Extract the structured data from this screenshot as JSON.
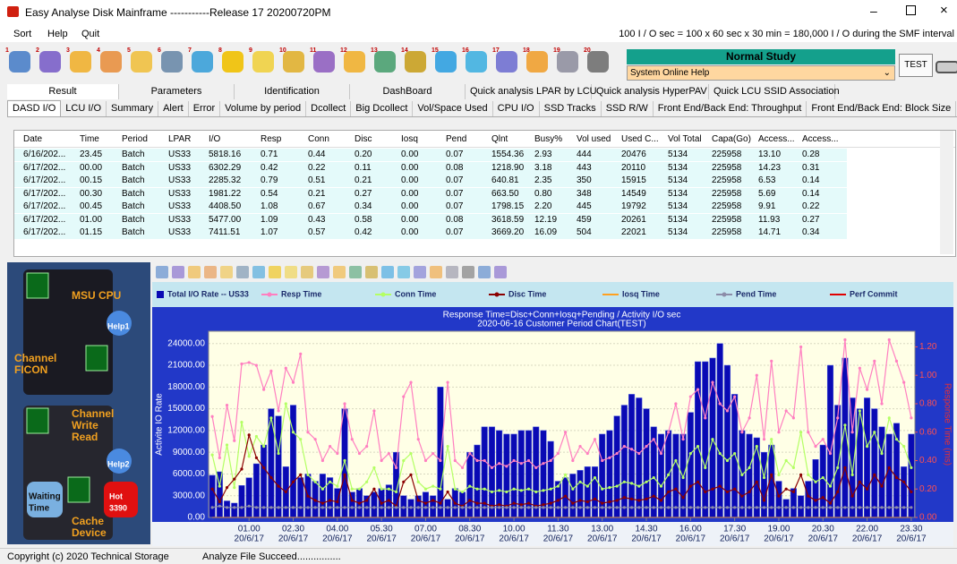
{
  "window": {
    "title": "Easy Analyse Disk Mainframe -----------Release 17 20200720PM"
  },
  "menu": [
    "Sort",
    "Help",
    "Quit"
  ],
  "info": "100 I / O sec = 100 x 60 sec x 30 min = 180,000 I / O during the SMF interval",
  "study": "Normal Study",
  "help_select": "System Online Help",
  "test_button": "TEST",
  "toolbar_numbers": [
    "1",
    "2",
    "3",
    "4",
    "5",
    "6",
    "7",
    "8",
    "9",
    "10",
    "11",
    "12",
    "13",
    "14",
    "15",
    "16",
    "17",
    "18",
    "19",
    "20"
  ],
  "tabs_top": [
    "Result",
    "Parameters",
    "Identification",
    "DashBoard",
    "Quick analysis LPAR by LCU",
    "Quick analysis HyperPAV",
    "Quick LCU SSID Association"
  ],
  "tabs_sub": [
    "DASD I/O",
    "LCU I/O",
    "Summary",
    "Alert",
    "Error",
    "Volume by period",
    "Dcollect",
    "Big Dcollect",
    "Vol/Space Used",
    "CPU I/O",
    "SSD Tracks",
    "SSD R/W",
    "Front End/Back End: Throughput",
    "Front End/Back End: Block Size"
  ],
  "table": {
    "columns": [
      "Date",
      "Time",
      "Period",
      "LPAR",
      "I/O",
      "Resp",
      "Conn",
      "Disc",
      "Iosq",
      "Pend",
      "Qlnt",
      "Busy%",
      "Vol used",
      "Used C...",
      "Vol Total",
      "Capa(Go)",
      "Access...",
      "Access..."
    ],
    "rows": [
      [
        "6/16/202...",
        "23.45",
        "Batch",
        "US33",
        "5818.16",
        "0.71",
        "0.44",
        "0.20",
        "0.00",
        "0.07",
        "1554.36",
        "2.93",
        "444",
        "20476",
        "5134",
        "225958",
        "13.10",
        "0.28"
      ],
      [
        "6/17/202...",
        "00.00",
        "Batch",
        "US33",
        "6302.29",
        "0.42",
        "0.22",
        "0.11",
        "0.00",
        "0.08",
        "1218.90",
        "3.18",
        "443",
        "20110",
        "5134",
        "225958",
        "14.23",
        "0.31"
      ],
      [
        "6/17/202...",
        "00.15",
        "Batch",
        "US33",
        "2285.32",
        "0.79",
        "0.51",
        "0.21",
        "0.00",
        "0.07",
        "640.81",
        "2.35",
        "350",
        "15915",
        "5134",
        "225958",
        "6.53",
        "0.14"
      ],
      [
        "6/17/202...",
        "00.30",
        "Batch",
        "US33",
        "1981.22",
        "0.54",
        "0.21",
        "0.27",
        "0.00",
        "0.07",
        "663.50",
        "0.80",
        "348",
        "14549",
        "5134",
        "225958",
        "5.69",
        "0.14"
      ],
      [
        "6/17/202...",
        "00.45",
        "Batch",
        "US33",
        "4408.50",
        "1.08",
        "0.67",
        "0.34",
        "0.00",
        "0.07",
        "1798.15",
        "2.20",
        "445",
        "19792",
        "5134",
        "225958",
        "9.91",
        "0.22"
      ],
      [
        "6/17/202...",
        "01.00",
        "Batch",
        "US33",
        "5477.00",
        "1.09",
        "0.43",
        "0.58",
        "0.00",
        "0.08",
        "3618.59",
        "12.19",
        "459",
        "20261",
        "5134",
        "225958",
        "11.93",
        "0.27"
      ],
      [
        "6/17/202...",
        "01.15",
        "Batch",
        "US33",
        "7411.51",
        "1.07",
        "0.57",
        "0.42",
        "0.00",
        "0.07",
        "3669.20",
        "16.09",
        "504",
        "22021",
        "5134",
        "225958",
        "14.71",
        "0.34"
      ]
    ]
  },
  "left_panel": [
    [
      "MSU CPU"
    ],
    [
      "Help1"
    ],
    [
      "Channel",
      "FICON"
    ],
    [
      "Channel",
      "Write",
      "Read"
    ],
    [
      "Help2"
    ],
    [
      "Waiting",
      "Time"
    ],
    [
      "Hot",
      "3390"
    ],
    [
      "Cache",
      "Device"
    ]
  ],
  "chart_data": {
    "type": "bar",
    "title": "Response Time=Disc+Conn+Iosq+Pending / Activity I/O sec",
    "subtitle": "2020-06-16 Customer Period Chart(TEST)",
    "y_label": "Activite IO Rate",
    "y2_label": "Response Time (ms)",
    "grid": true,
    "categories": [
      null,
      null,
      null,
      null,
      null,
      "01.00",
      null,
      null,
      null,
      null,
      null,
      "02.30",
      null,
      null,
      null,
      null,
      null,
      "04.00",
      null,
      null,
      null,
      null,
      null,
      "05.30",
      null,
      null,
      null,
      null,
      null,
      "07.00",
      null,
      null,
      null,
      null,
      null,
      "08.30",
      null,
      null,
      null,
      null,
      null,
      "10.00",
      null,
      null,
      null,
      null,
      null,
      "11.30",
      null,
      null,
      null,
      null,
      null,
      "13.00",
      null,
      null,
      null,
      null,
      null,
      "14.30",
      null,
      null,
      null,
      null,
      null,
      "16.00",
      null,
      null,
      null,
      null,
      null,
      "17.30",
      null,
      null,
      null,
      null,
      null,
      "19.00",
      null,
      null,
      null,
      null,
      null,
      "20.30",
      null,
      null,
      null,
      null,
      null,
      "22.00",
      null,
      null,
      null,
      null,
      null,
      "23.30"
    ],
    "category_dates": [
      null,
      null,
      null,
      null,
      null,
      "20/6/17",
      null,
      null,
      null,
      null,
      null,
      "20/6/17",
      null,
      null,
      null,
      null,
      null,
      "20/6/17",
      null,
      null,
      null,
      null,
      null,
      "20/6/17",
      null,
      null,
      null,
      null,
      null,
      "20/6/17",
      null,
      null,
      null,
      null,
      null,
      "20/6/17",
      null,
      null,
      null,
      null,
      null,
      "20/6/17",
      null,
      null,
      null,
      null,
      null,
      "20/6/17",
      null,
      null,
      null,
      null,
      null,
      "20/6/17",
      null,
      null,
      null,
      null,
      null,
      "20/6/17",
      null,
      null,
      null,
      null,
      null,
      "20/6/17",
      null,
      null,
      null,
      null,
      null,
      "20/6/17",
      null,
      null,
      null,
      null,
      null,
      "20/6/17",
      null,
      null,
      null,
      null,
      null,
      "20/6/17",
      null,
      null,
      null,
      null,
      null,
      "20/6/17",
      null,
      null,
      null,
      null,
      null,
      "20/6/17"
    ],
    "ylim": [
      0,
      25700
    ],
    "yticks": [
      {
        "value": 0,
        "label": "0.00"
      },
      {
        "value": 3000,
        "label": "3000.00"
      },
      {
        "value": 6000,
        "label": "6000.00"
      },
      {
        "value": 9000,
        "label": "9000.00"
      },
      {
        "value": 12000,
        "label": "12000.00"
      },
      {
        "value": 15000,
        "label": "15000.00"
      },
      {
        "value": 18000,
        "label": "18000.00"
      },
      {
        "value": 21000,
        "label": "21000.00"
      },
      {
        "value": 24000,
        "label": "24000.00"
      }
    ],
    "y2lim": [
      0,
      1.31
    ],
    "y2ticks": [
      {
        "value": 0,
        "label": "0.00"
      },
      {
        "value": 0.2,
        "label": "0.20"
      },
      {
        "value": 0.4,
        "label": "0.40"
      },
      {
        "value": 0.6,
        "label": "0.60"
      },
      {
        "value": 0.8,
        "label": "0.80"
      },
      {
        "value": 1,
        "label": "1.00"
      },
      {
        "value": 1.2,
        "label": "1.20"
      }
    ],
    "series": [
      {
        "name": "Total I/O Rate -- US33",
        "color": "#0a0ab4",
        "values": [
          5818.16,
          6302.29,
          2285.32,
          1981.22,
          4408.5,
          5477,
          7411.51,
          10000,
          15000,
          14000,
          7000,
          15500,
          5500,
          6000,
          5000,
          6000,
          5500,
          4000,
          15000,
          3500,
          4000,
          3000,
          3500,
          4000,
          4500,
          9000,
          3000,
          2500,
          3000,
          3500,
          3000,
          18000,
          2500,
          4000,
          3500,
          9000,
          10000,
          12500,
          12500,
          12000,
          11500,
          11500,
          12000,
          12000,
          12500,
          12000,
          10500,
          5000,
          5500,
          6000,
          6500,
          7000,
          7000,
          11500,
          12000,
          14000,
          15500,
          17000,
          16500,
          15000,
          12500,
          11500,
          12000,
          11500,
          11500,
          14500,
          21500,
          21500,
          22000,
          24000,
          21000,
          17000,
          12000,
          11500,
          11000,
          9000,
          10000,
          5000,
          2500,
          4000,
          3000,
          5000,
          8000,
          10000,
          21000,
          15500,
          22000,
          16500,
          15000,
          16500,
          15000,
          12500,
          11500,
          13000,
          7000,
          11500
        ]
      },
      {
        "name": "Resp Time",
        "color": "#ff7fc0",
        "type": "line",
        "axis": "y2",
        "marker": true,
        "values": [
          0.71,
          0.42,
          0.79,
          0.54,
          1.08,
          1.09,
          1.07,
          0.9,
          1.03,
          0.75,
          1.05,
          0.95,
          1.15,
          0.6,
          0.55,
          0.4,
          0.5,
          0.45,
          0.8,
          0.55,
          0.45,
          0.5,
          0.75,
          0.4,
          0.45,
          0.35,
          0.85,
          0.95,
          0.55,
          0.4,
          0.45,
          0.4,
          0.95,
          0.4,
          0.35,
          0.45,
          0.4,
          0.4,
          0.35,
          0.38,
          0.36,
          0.4,
          0.38,
          0.4,
          0.35,
          0.38,
          0.4,
          0.45,
          0.6,
          0.4,
          0.5,
          0.45,
          0.55,
          0.4,
          0.42,
          0.45,
          0.5,
          0.48,
          0.45,
          0.5,
          0.55,
          0.45,
          0.6,
          0.8,
          0.55,
          0.85,
          0.9,
          0.7,
          0.95,
          0.8,
          0.75,
          0.85,
          0.6,
          0.7,
          1,
          0.55,
          1.1,
          0.6,
          0.75,
          0.7,
          1.2,
          0.6,
          0.5,
          0.55,
          0.45,
          0.7,
          1.25,
          0.6,
          1.05,
          0.9,
          1.1,
          0.8,
          1.25,
          1.1,
          0.95,
          0.7
        ]
      },
      {
        "name": "Conn Time",
        "color": "#b4ff64",
        "type": "line",
        "axis": "y2",
        "marker": true,
        "values": [
          0.44,
          0.22,
          0.51,
          0.21,
          0.67,
          0.43,
          0.57,
          0.5,
          0.7,
          0.45,
          0.8,
          0.6,
          0.55,
          0.3,
          0.25,
          0.2,
          0.25,
          0.22,
          0.4,
          0.2,
          0.2,
          0.25,
          0.35,
          0.2,
          0.2,
          0.18,
          0.4,
          0.45,
          0.25,
          0.2,
          0.22,
          0.2,
          0.5,
          0.2,
          0.18,
          0.22,
          0.2,
          0.2,
          0.18,
          0.19,
          0.18,
          0.2,
          0.19,
          0.2,
          0.18,
          0.19,
          0.2,
          0.22,
          0.3,
          0.2,
          0.25,
          0.22,
          0.28,
          0.2,
          0.21,
          0.22,
          0.25,
          0.24,
          0.22,
          0.25,
          0.28,
          0.22,
          0.3,
          0.4,
          0.28,
          0.45,
          0.5,
          0.35,
          0.55,
          0.45,
          0.4,
          0.45,
          0.3,
          0.35,
          0.5,
          0.28,
          0.55,
          0.3,
          0.4,
          0.35,
          0.6,
          0.3,
          0.25,
          0.28,
          0.22,
          0.35,
          0.65,
          0.3,
          0.75,
          0.5,
          0.6,
          0.45,
          0.7,
          0.55,
          0.5,
          0.35
        ]
      },
      {
        "name": "Disc Time",
        "color": "#8b0000",
        "type": "line",
        "axis": "y2",
        "marker": true,
        "values": [
          0.2,
          0.11,
          0.21,
          0.27,
          0.34,
          0.58,
          0.42,
          0.35,
          0.28,
          0.22,
          0.18,
          0.25,
          0.3,
          0.15,
          0.12,
          0.1,
          0.12,
          0.11,
          0.3,
          0.12,
          0.1,
          0.12,
          0.2,
          0.1,
          0.12,
          0.08,
          0.25,
          0.3,
          0.12,
          0.1,
          0.12,
          0.1,
          0.18,
          0.1,
          0.08,
          0.12,
          0.1,
          0.1,
          0.08,
          0.09,
          0.08,
          0.1,
          0.09,
          0.1,
          0.08,
          0.09,
          0.1,
          0.12,
          0.15,
          0.1,
          0.12,
          0.11,
          0.13,
          0.1,
          0.11,
          0.12,
          0.14,
          0.13,
          0.12,
          0.13,
          0.15,
          0.12,
          0.18,
          0.2,
          0.14,
          0.22,
          0.25,
          0.18,
          0.2,
          0.22,
          0.18,
          0.2,
          0.15,
          0.18,
          0.25,
          0.12,
          0.3,
          0.15,
          0.2,
          0.18,
          0.3,
          0.15,
          0.12,
          0.14,
          0.1,
          0.18,
          0.35,
          0.15,
          0.25,
          0.2,
          0.3,
          0.22,
          0.35,
          0.28,
          0.25,
          0.18
        ]
      },
      {
        "name": "Iosq Time",
        "color": "#ffa020",
        "type": "line",
        "axis": "y2",
        "values": [
          0,
          0,
          0,
          0,
          0,
          0,
          0,
          0,
          0,
          0,
          0,
          0,
          0,
          0,
          0,
          0,
          0,
          0,
          0,
          0,
          0,
          0,
          0,
          0,
          0,
          0,
          0,
          0,
          0,
          0,
          0,
          0,
          0,
          0,
          0,
          0,
          0,
          0,
          0,
          0,
          0,
          0,
          0,
          0,
          0,
          0,
          0,
          0,
          0,
          0,
          0,
          0,
          0,
          0,
          0,
          0,
          0,
          0,
          0,
          0,
          0,
          0,
          0,
          0,
          0,
          0,
          0,
          0,
          0,
          0,
          0,
          0,
          0,
          0,
          0,
          0,
          0,
          0,
          0,
          0,
          0,
          0,
          0,
          0,
          0,
          0,
          0,
          0,
          0,
          0,
          0,
          0,
          0,
          0,
          0,
          0
        ]
      },
      {
        "name": "Pend Time",
        "color": "#8c8ca8",
        "type": "line",
        "axis": "y2",
        "marker": true,
        "values": [
          0.07,
          0.08,
          0.07,
          0.07,
          0.07,
          0.08,
          0.07,
          0.07,
          0.07,
          0.07,
          0.07,
          0.07,
          0.07,
          0.07,
          0.07,
          0.07,
          0.07,
          0.07,
          0.07,
          0.07,
          0.07,
          0.07,
          0.07,
          0.07,
          0.07,
          0.07,
          0.07,
          0.07,
          0.07,
          0.07,
          0.07,
          0.07,
          0.07,
          0.07,
          0.07,
          0.07,
          0.07,
          0.07,
          0.07,
          0.07,
          0.07,
          0.07,
          0.07,
          0.07,
          0.07,
          0.07,
          0.07,
          0.07,
          0.07,
          0.07,
          0.07,
          0.07,
          0.07,
          0.07,
          0.07,
          0.07,
          0.07,
          0.07,
          0.07,
          0.07,
          0.07,
          0.07,
          0.07,
          0.07,
          0.07,
          0.07,
          0.07,
          0.07,
          0.07,
          0.07,
          0.07,
          0.07,
          0.07,
          0.07,
          0.07,
          0.07,
          0.07,
          0.07,
          0.07,
          0.07,
          0.07,
          0.07,
          0.07,
          0.07,
          0.07,
          0.07,
          0.07,
          0.07,
          0.07,
          0.07,
          0.07,
          0.07,
          0.07,
          0.07,
          0.07,
          0.07
        ]
      },
      {
        "name": "Perf Commit",
        "color": "#e00000",
        "type": "line",
        "axis": "y2",
        "values": [
          0,
          0,
          0,
          0,
          0,
          0,
          0,
          0,
          0,
          0,
          0,
          0,
          0,
          0,
          0,
          0,
          0,
          0,
          0,
          0,
          0,
          0,
          0,
          0,
          0,
          0,
          0,
          0,
          0,
          0,
          0,
          0,
          0,
          0,
          0,
          0,
          0,
          0,
          0,
          0,
          0,
          0,
          0,
          0,
          0,
          0,
          0,
          0,
          0,
          0,
          0,
          0,
          0,
          0,
          0,
          0,
          0,
          0,
          0,
          0,
          0,
          0,
          0,
          0,
          0,
          0,
          0,
          0,
          0,
          0,
          0,
          0,
          0,
          0,
          0,
          0,
          0,
          0,
          0,
          0,
          0,
          0,
          0,
          0,
          0,
          0,
          0,
          0,
          0,
          0,
          0,
          0,
          0,
          0,
          0,
          0
        ]
      }
    ]
  },
  "status": [
    "Copyright (c) 2020 Technical Storage",
    "Analyze File Succeed................"
  ]
}
